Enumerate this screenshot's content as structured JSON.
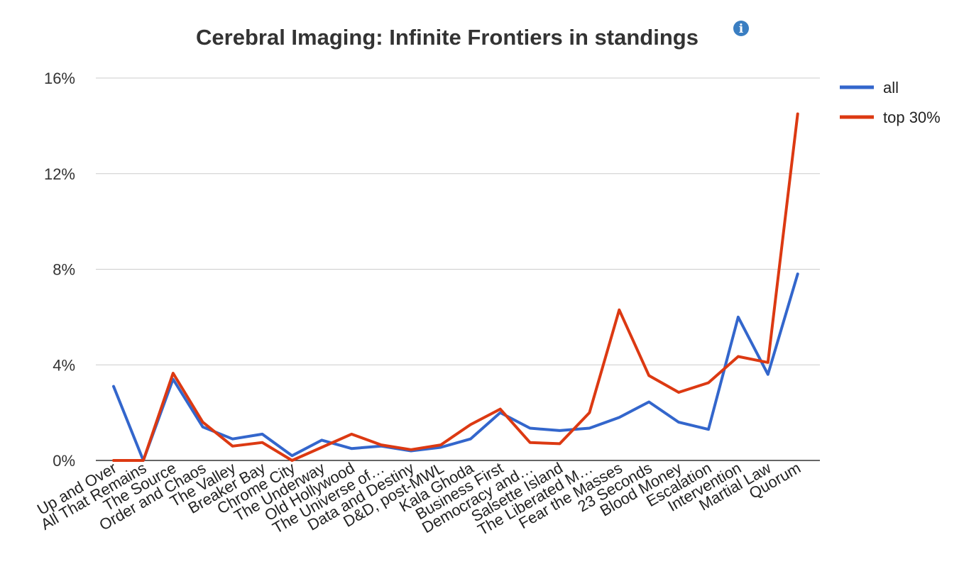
{
  "chart_data": {
    "type": "line",
    "title": "Cerebral Imaging: Infinite Frontiers in standings",
    "info_icon": "info-icon",
    "xlabel": "",
    "ylabel": "",
    "ylim": [
      0,
      16
    ],
    "y_ticks": [
      "0%",
      "4%",
      "8%",
      "12%",
      "16%"
    ],
    "y_tick_values": [
      0,
      4,
      8,
      12,
      16
    ],
    "grid": true,
    "legend_position": "top-right",
    "categories": [
      "Up and Over",
      "All That Remains",
      "The Source",
      "Order and Chaos",
      "The Valley",
      "Breaker Bay",
      "Chrome City",
      "The Underway",
      "Old Hollywood",
      "The Universe of…",
      "Data and Destiny",
      "D&D, post-MWL",
      "Kala Ghoda",
      "Business First",
      "Democracy and…",
      "Salsette Island",
      "The Liberated M…",
      "Fear the Masses",
      "23 Seconds",
      "Blood Money",
      "Escalation",
      "Intervention",
      "Martial Law",
      "Quorum"
    ],
    "series": [
      {
        "name": "all",
        "color": "#3366cc",
        "values": [
          3.1,
          0.0,
          3.4,
          1.4,
          0.9,
          1.1,
          0.2,
          0.85,
          0.5,
          0.6,
          0.4,
          0.55,
          0.9,
          2.0,
          1.35,
          1.25,
          1.35,
          1.8,
          2.45,
          1.6,
          1.3,
          6.0,
          3.6,
          7.8
        ]
      },
      {
        "name": "top 30%",
        "color": "#dc3912",
        "values": [
          0.0,
          0.0,
          3.65,
          1.6,
          0.6,
          0.75,
          0.0,
          0.55,
          1.1,
          0.65,
          0.45,
          0.65,
          1.5,
          2.15,
          0.75,
          0.7,
          2.0,
          6.3,
          3.55,
          2.85,
          3.25,
          4.35,
          4.1,
          14.5
        ]
      }
    ]
  }
}
